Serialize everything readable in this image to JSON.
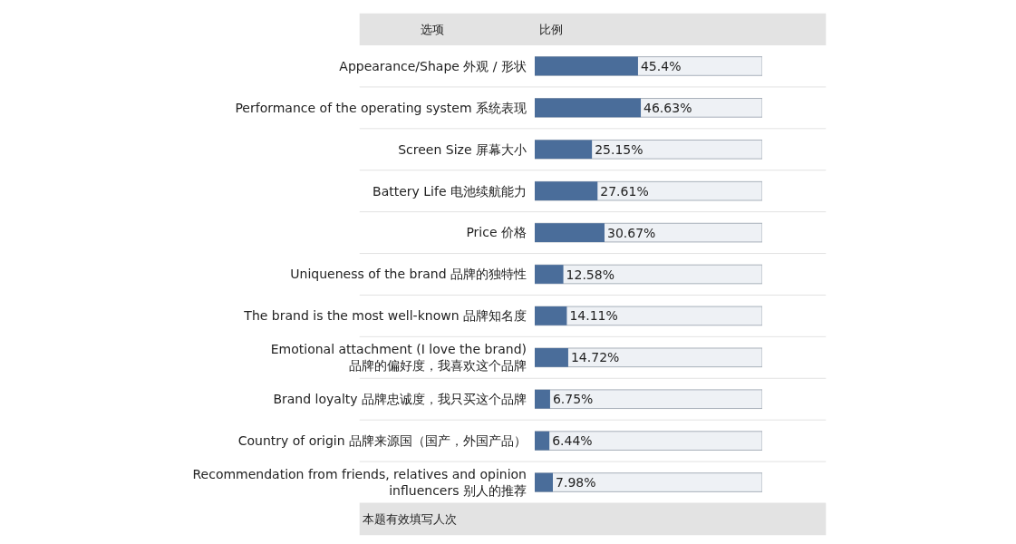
{
  "chart_data": {
    "type": "bar",
    "orientation": "horizontal",
    "categories": [
      "Appearance/Shape 外观 / 形状",
      "Performance of the operating system 系统表现",
      "Screen Size 屏幕大小",
      "Battery Life 电池续航能力",
      "Price 价格",
      "Uniqueness of the brand 品牌的独特性",
      "The brand is the most well-known 品牌知名度",
      "Emotional attachment (I love the brand) 品牌的偏好度，我喜欢这个品牌",
      "Brand loyalty 品牌忠诚度，我只买这个品牌",
      "Country of origin 品牌来源国（国产，外国产品）",
      "Recommendation from friends, relatives and opinion influencers 别人的推荐"
    ],
    "values": [
      45.4,
      46.63,
      25.15,
      27.61,
      30.67,
      12.58,
      14.11,
      14.72,
      6.75,
      6.44,
      7.98
    ],
    "value_labels": [
      "45.4%",
      "46.63%",
      "25.15%",
      "27.61%",
      "30.67%",
      "12.58%",
      "14.11%",
      "14.72%",
      "6.75%",
      "6.44%",
      "7.98%"
    ],
    "color": "#4a6d9a",
    "xlim": [
      0,
      100
    ],
    "tick_labels": "y",
    "grid": false,
    "legend": false,
    "annotations": [
      "选项",
      "比例",
      "本题有效填写人次"
    ]
  }
}
